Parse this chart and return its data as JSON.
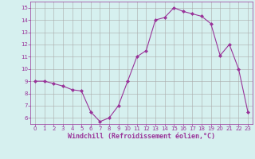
{
  "x": [
    0,
    1,
    2,
    3,
    4,
    5,
    6,
    7,
    8,
    9,
    10,
    11,
    12,
    13,
    14,
    15,
    16,
    17,
    18,
    19,
    20,
    21,
    22,
    23
  ],
  "y": [
    9.0,
    9.0,
    8.8,
    8.6,
    8.3,
    8.2,
    6.5,
    5.7,
    6.0,
    7.0,
    9.0,
    11.0,
    11.5,
    14.0,
    14.2,
    15.0,
    14.7,
    14.5,
    14.3,
    13.7,
    11.1,
    12.0,
    10.0,
    6.5
  ],
  "line_color": "#993399",
  "marker": "D",
  "marker_size": 2,
  "bg_color": "#d6f0ef",
  "grid_color": "#aaaaaa",
  "xlabel": "Windchill (Refroidissement éolien,°C)",
  "xlabel_color": "#993399",
  "tick_color": "#993399",
  "ylim": [
    5.5,
    15.5
  ],
  "xlim": [
    -0.5,
    23.5
  ],
  "yticks": [
    6,
    7,
    8,
    9,
    10,
    11,
    12,
    13,
    14,
    15
  ],
  "xticks": [
    0,
    1,
    2,
    3,
    4,
    5,
    6,
    7,
    8,
    9,
    10,
    11,
    12,
    13,
    14,
    15,
    16,
    17,
    18,
    19,
    20,
    21,
    22,
    23
  ],
  "tick_fontsize": 5.0,
  "xlabel_fontsize": 6.0,
  "linewidth": 0.8
}
